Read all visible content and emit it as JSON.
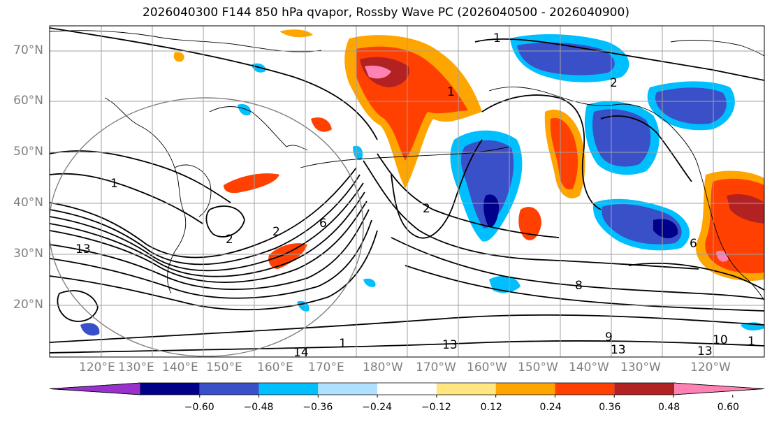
{
  "title": "2026040300 F144 850 hPa qvapor, Rossby Wave PC (2026040500 - 2026040900)",
  "lat_labels": [
    "70°N",
    "60°N",
    "50°N",
    "40°N",
    "30°N",
    "20°N"
  ],
  "lon_labels": [
    "120°E",
    "130°E",
    "140°E",
    "150°E",
    "160°E",
    "170°E",
    "180°W",
    "170°W",
    "160°W",
    "150°W",
    "140°W",
    "130°W",
    "120°W"
  ],
  "contour_labels": [
    "1",
    "1",
    "2",
    "2",
    "2",
    "2",
    "6",
    "6",
    "8",
    "9",
    "1",
    "13",
    "13",
    "13",
    "13",
    "14",
    "1",
    "10",
    "1"
  ],
  "colorbar": {
    "ticks": [
      "−0.60",
      "−0.48",
      "−0.36",
      "−0.24",
      "−0.12",
      "0.12",
      "0.24",
      "0.36",
      "0.48",
      "0.60"
    ],
    "colors": [
      "#9932cc",
      "#00008b",
      "#3a50c8",
      "#00bfff",
      "#b0e0ff",
      "#ffffff",
      "#ffe680",
      "#ffa500",
      "#ff4000",
      "#b22222",
      "#ff82b4"
    ]
  }
}
